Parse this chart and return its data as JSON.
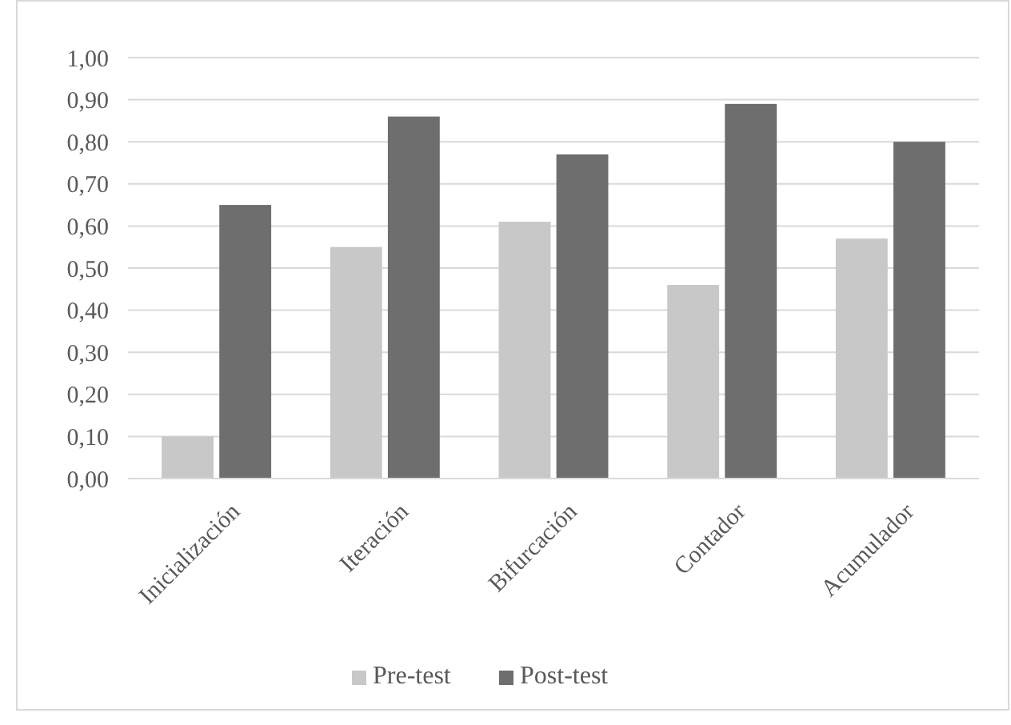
{
  "chart_data": {
    "type": "bar",
    "categories": [
      "Inicialización",
      "Iteración",
      "Bifurcación",
      "Contador",
      "Acumulador"
    ],
    "series": [
      {
        "name": "Pre-test",
        "color": "#c8c8c8",
        "values": [
          0.1,
          0.55,
          0.61,
          0.46,
          0.57
        ]
      },
      {
        "name": "Post-test",
        "color": "#6e6e6e",
        "values": [
          0.65,
          0.86,
          0.77,
          0.89,
          0.8
        ]
      }
    ],
    "ylim": [
      0,
      1
    ],
    "yticks": [
      {
        "value": 0,
        "label": "0,00"
      },
      {
        "value": 0.1,
        "label": "0,10"
      },
      {
        "value": 0.2,
        "label": "0,20"
      },
      {
        "value": 0.3,
        "label": "0,30"
      },
      {
        "value": 0.4,
        "label": "0,40"
      },
      {
        "value": 0.5,
        "label": "0,50"
      },
      {
        "value": 0.6,
        "label": "0,60"
      },
      {
        "value": 0.7,
        "label": "0,70"
      },
      {
        "value": 0.8,
        "label": "0,80"
      },
      {
        "value": 0.9,
        "label": "0,90"
      },
      {
        "value": 1,
        "label": "1,00"
      }
    ],
    "grid": "y",
    "legend": "bottom"
  }
}
